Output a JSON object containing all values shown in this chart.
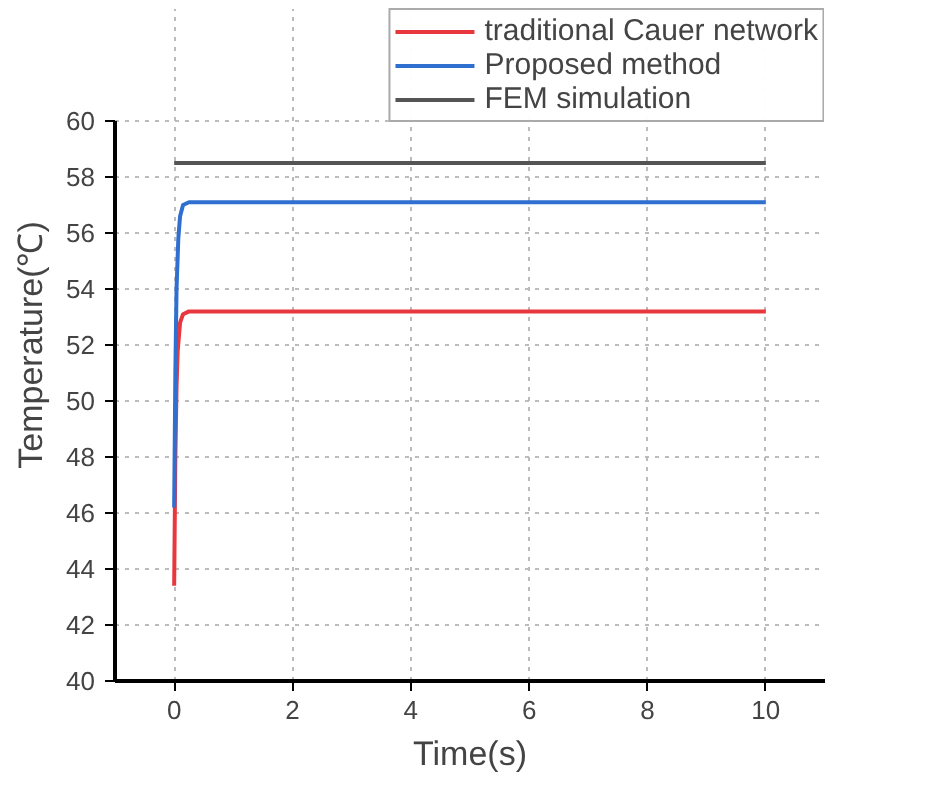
{
  "chart_data": {
    "type": "line",
    "xlabel": "Time(s)",
    "ylabel": "Temperature(℃)",
    "xlim": [
      -1,
      11
    ],
    "ylim": [
      40,
      60
    ],
    "xticks": [
      0,
      2,
      4,
      6,
      8,
      10
    ],
    "yticks": [
      40,
      42,
      44,
      46,
      48,
      50,
      52,
      54,
      56,
      58,
      60
    ],
    "grid": true,
    "legend": "top right",
    "line_style": "solid",
    "series": [
      {
        "name": "traditional Cauer network",
        "color": "#e8383d",
        "x": [
          0,
          0.02,
          0.04,
          0.06,
          0.1,
          0.15,
          0.25,
          10
        ],
        "values": [
          43.4,
          48,
          50.5,
          51.8,
          52.8,
          53.1,
          53.2,
          53.2
        ]
      },
      {
        "name": "Proposed method",
        "color": "#2f6fcf",
        "x": [
          0,
          0.02,
          0.04,
          0.07,
          0.1,
          0.15,
          0.25,
          10
        ],
        "values": [
          46.2,
          51,
          54,
          55.8,
          56.6,
          57.0,
          57.1,
          57.1
        ]
      },
      {
        "name": "FEM simulation",
        "color": "#555555",
        "x": [
          0,
          10
        ],
        "values": [
          58.5,
          58.5
        ]
      }
    ]
  }
}
